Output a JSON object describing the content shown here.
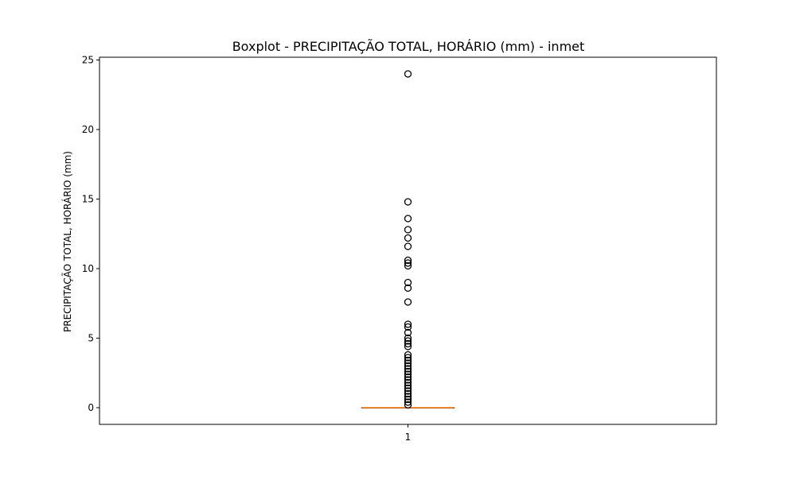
{
  "chart_data": {
    "type": "boxplot",
    "title": "Boxplot - PRECIPITAÇÃO TOTAL, HORÁRIO (mm) - inmet",
    "xlabel": "",
    "ylabel": "PRECIPITAÇÃO TOTAL, HORÁRIO (mm)",
    "ylim": [
      -1.2,
      25.2
    ],
    "y_ticks": [
      0,
      5,
      10,
      15,
      20,
      25
    ],
    "categories": [
      "1"
    ],
    "grid": false,
    "legend": "none",
    "boxes": [
      {
        "category": "1",
        "whisker_low": 0,
        "q1": 0,
        "median": 0,
        "q3": 0,
        "whisker_high": 0,
        "outliers": [
          0.2,
          0.4,
          0.6,
          0.8,
          1.0,
          1.2,
          1.4,
          1.6,
          1.8,
          2.0,
          2.2,
          2.4,
          2.6,
          2.8,
          3.0,
          3.2,
          3.4,
          3.6,
          3.8,
          4.4,
          4.6,
          4.8,
          5.0,
          5.4,
          5.8,
          6.0,
          7.6,
          8.6,
          9.0,
          10.2,
          10.4,
          10.6,
          11.6,
          12.2,
          12.8,
          13.6,
          14.8,
          24.0
        ]
      }
    ],
    "colors": {
      "median": "#ff7f0e",
      "box": "#000000",
      "outlier_edge": "#000000"
    }
  }
}
